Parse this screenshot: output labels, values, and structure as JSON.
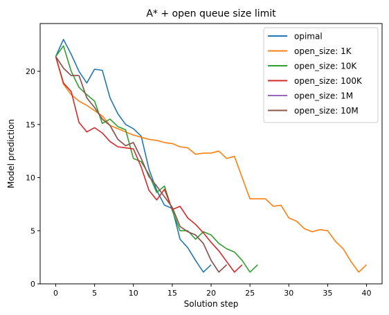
{
  "chart_data": {
    "type": "line",
    "title": "A* + open queue size limit",
    "xlabel": "Solution step",
    "ylabel": "Model prediction",
    "xlim": [
      -2,
      42
    ],
    "ylim": [
      0,
      24.5
    ],
    "xticks": [
      0,
      5,
      10,
      15,
      20,
      25,
      30,
      35,
      40
    ],
    "yticks": [
      0,
      5,
      10,
      15,
      20
    ],
    "grid": false,
    "legend_position": "top-right",
    "series": [
      {
        "name": "opimal",
        "color": "#1f77b4",
        "x": [
          0,
          1,
          2,
          3,
          4,
          5,
          6,
          7,
          8,
          9,
          10,
          11,
          12,
          13,
          14,
          15,
          16,
          17,
          18,
          19,
          20
        ],
        "y": [
          21.4,
          23.0,
          21.6,
          20.0,
          18.9,
          20.2,
          20.1,
          17.5,
          16.0,
          15.0,
          14.6,
          13.9,
          10.8,
          8.8,
          7.4,
          7.1,
          4.2,
          3.4,
          2.2,
          1.1,
          1.8
        ]
      },
      {
        "name": "open_size: 1K",
        "color": "#ff7f0e",
        "x": [
          0,
          1,
          2,
          3,
          4,
          5,
          6,
          7,
          8,
          9,
          10,
          11,
          12,
          13,
          14,
          15,
          16,
          17,
          18,
          19,
          20,
          21,
          22,
          23,
          24,
          25,
          26,
          27,
          28,
          29,
          30,
          31,
          32,
          33,
          34,
          35,
          36,
          37,
          38,
          39,
          40
        ],
        "y": [
          21.4,
          18.8,
          17.8,
          17.2,
          16.8,
          16.3,
          15.8,
          14.9,
          14.6,
          14.3,
          14.0,
          13.8,
          13.6,
          13.5,
          13.3,
          13.2,
          12.9,
          12.8,
          12.2,
          12.3,
          12.3,
          12.5,
          11.8,
          12.0,
          10.0,
          8.0,
          8.0,
          8.0,
          7.3,
          7.4,
          6.2,
          5.9,
          5.2,
          4.9,
          5.1,
          5.0,
          4.0,
          3.3,
          2.1,
          1.1,
          1.8
        ]
      },
      {
        "name": "open_size: 10K",
        "color": "#2ca02c",
        "x": [
          0,
          1,
          2,
          3,
          4,
          5,
          6,
          7,
          8,
          9,
          10,
          11,
          12,
          13,
          14,
          15,
          16,
          17,
          18,
          19,
          20,
          21,
          22,
          23,
          24,
          25,
          26
        ],
        "y": [
          21.4,
          22.4,
          20.0,
          18.5,
          17.8,
          17.2,
          15.1,
          15.5,
          14.8,
          14.5,
          11.8,
          11.5,
          10.3,
          8.6,
          9.2,
          6.9,
          5.0,
          5.0,
          4.2,
          4.9,
          4.6,
          3.8,
          3.3,
          3.0,
          2.2,
          1.1,
          1.8
        ]
      },
      {
        "name": "open_size: 100K",
        "color": "#d62728",
        "x": [
          0,
          1,
          2,
          3,
          4,
          5,
          6,
          7,
          8,
          9,
          10,
          11,
          12,
          13,
          14,
          15,
          16,
          17,
          18,
          19,
          20,
          21,
          22,
          23,
          24
        ],
        "y": [
          21.4,
          18.9,
          18.1,
          15.2,
          14.3,
          14.7,
          14.2,
          13.4,
          12.9,
          12.8,
          12.7,
          11.0,
          8.8,
          7.9,
          8.9,
          7.0,
          7.3,
          6.2,
          5.6,
          4.8,
          3.9,
          3.1,
          2.1,
          1.1,
          1.8
        ]
      },
      {
        "name": "open_size: 1M",
        "color": "#9467bd",
        "x": [
          0,
          1,
          2,
          3,
          4,
          5,
          6,
          7,
          8,
          9,
          10,
          11,
          12,
          13,
          14,
          15,
          16,
          17,
          18,
          19,
          20,
          21,
          22
        ],
        "y": [
          21.4,
          20.3,
          19.6,
          19.6,
          17.5,
          16.6,
          15.5,
          14.9,
          13.6,
          13.0,
          13.3,
          11.8,
          10.1,
          9.2,
          8.2,
          7.2,
          5.4,
          4.9,
          4.6,
          3.8,
          2.2,
          1.1,
          1.8
        ]
      },
      {
        "name": "open_size: 10M",
        "color": "#8c564b",
        "x": [
          0,
          1,
          2,
          3,
          4,
          5,
          6,
          7,
          8,
          9,
          10,
          11,
          12,
          13,
          14,
          15,
          16,
          17,
          18,
          19,
          20,
          21,
          22
        ],
        "y": [
          21.4,
          20.3,
          19.6,
          19.6,
          17.5,
          16.6,
          15.5,
          14.9,
          13.6,
          13.0,
          13.3,
          11.8,
          10.1,
          9.2,
          8.2,
          7.2,
          5.4,
          4.9,
          4.6,
          3.8,
          2.2,
          1.1,
          1.8
        ]
      }
    ]
  }
}
